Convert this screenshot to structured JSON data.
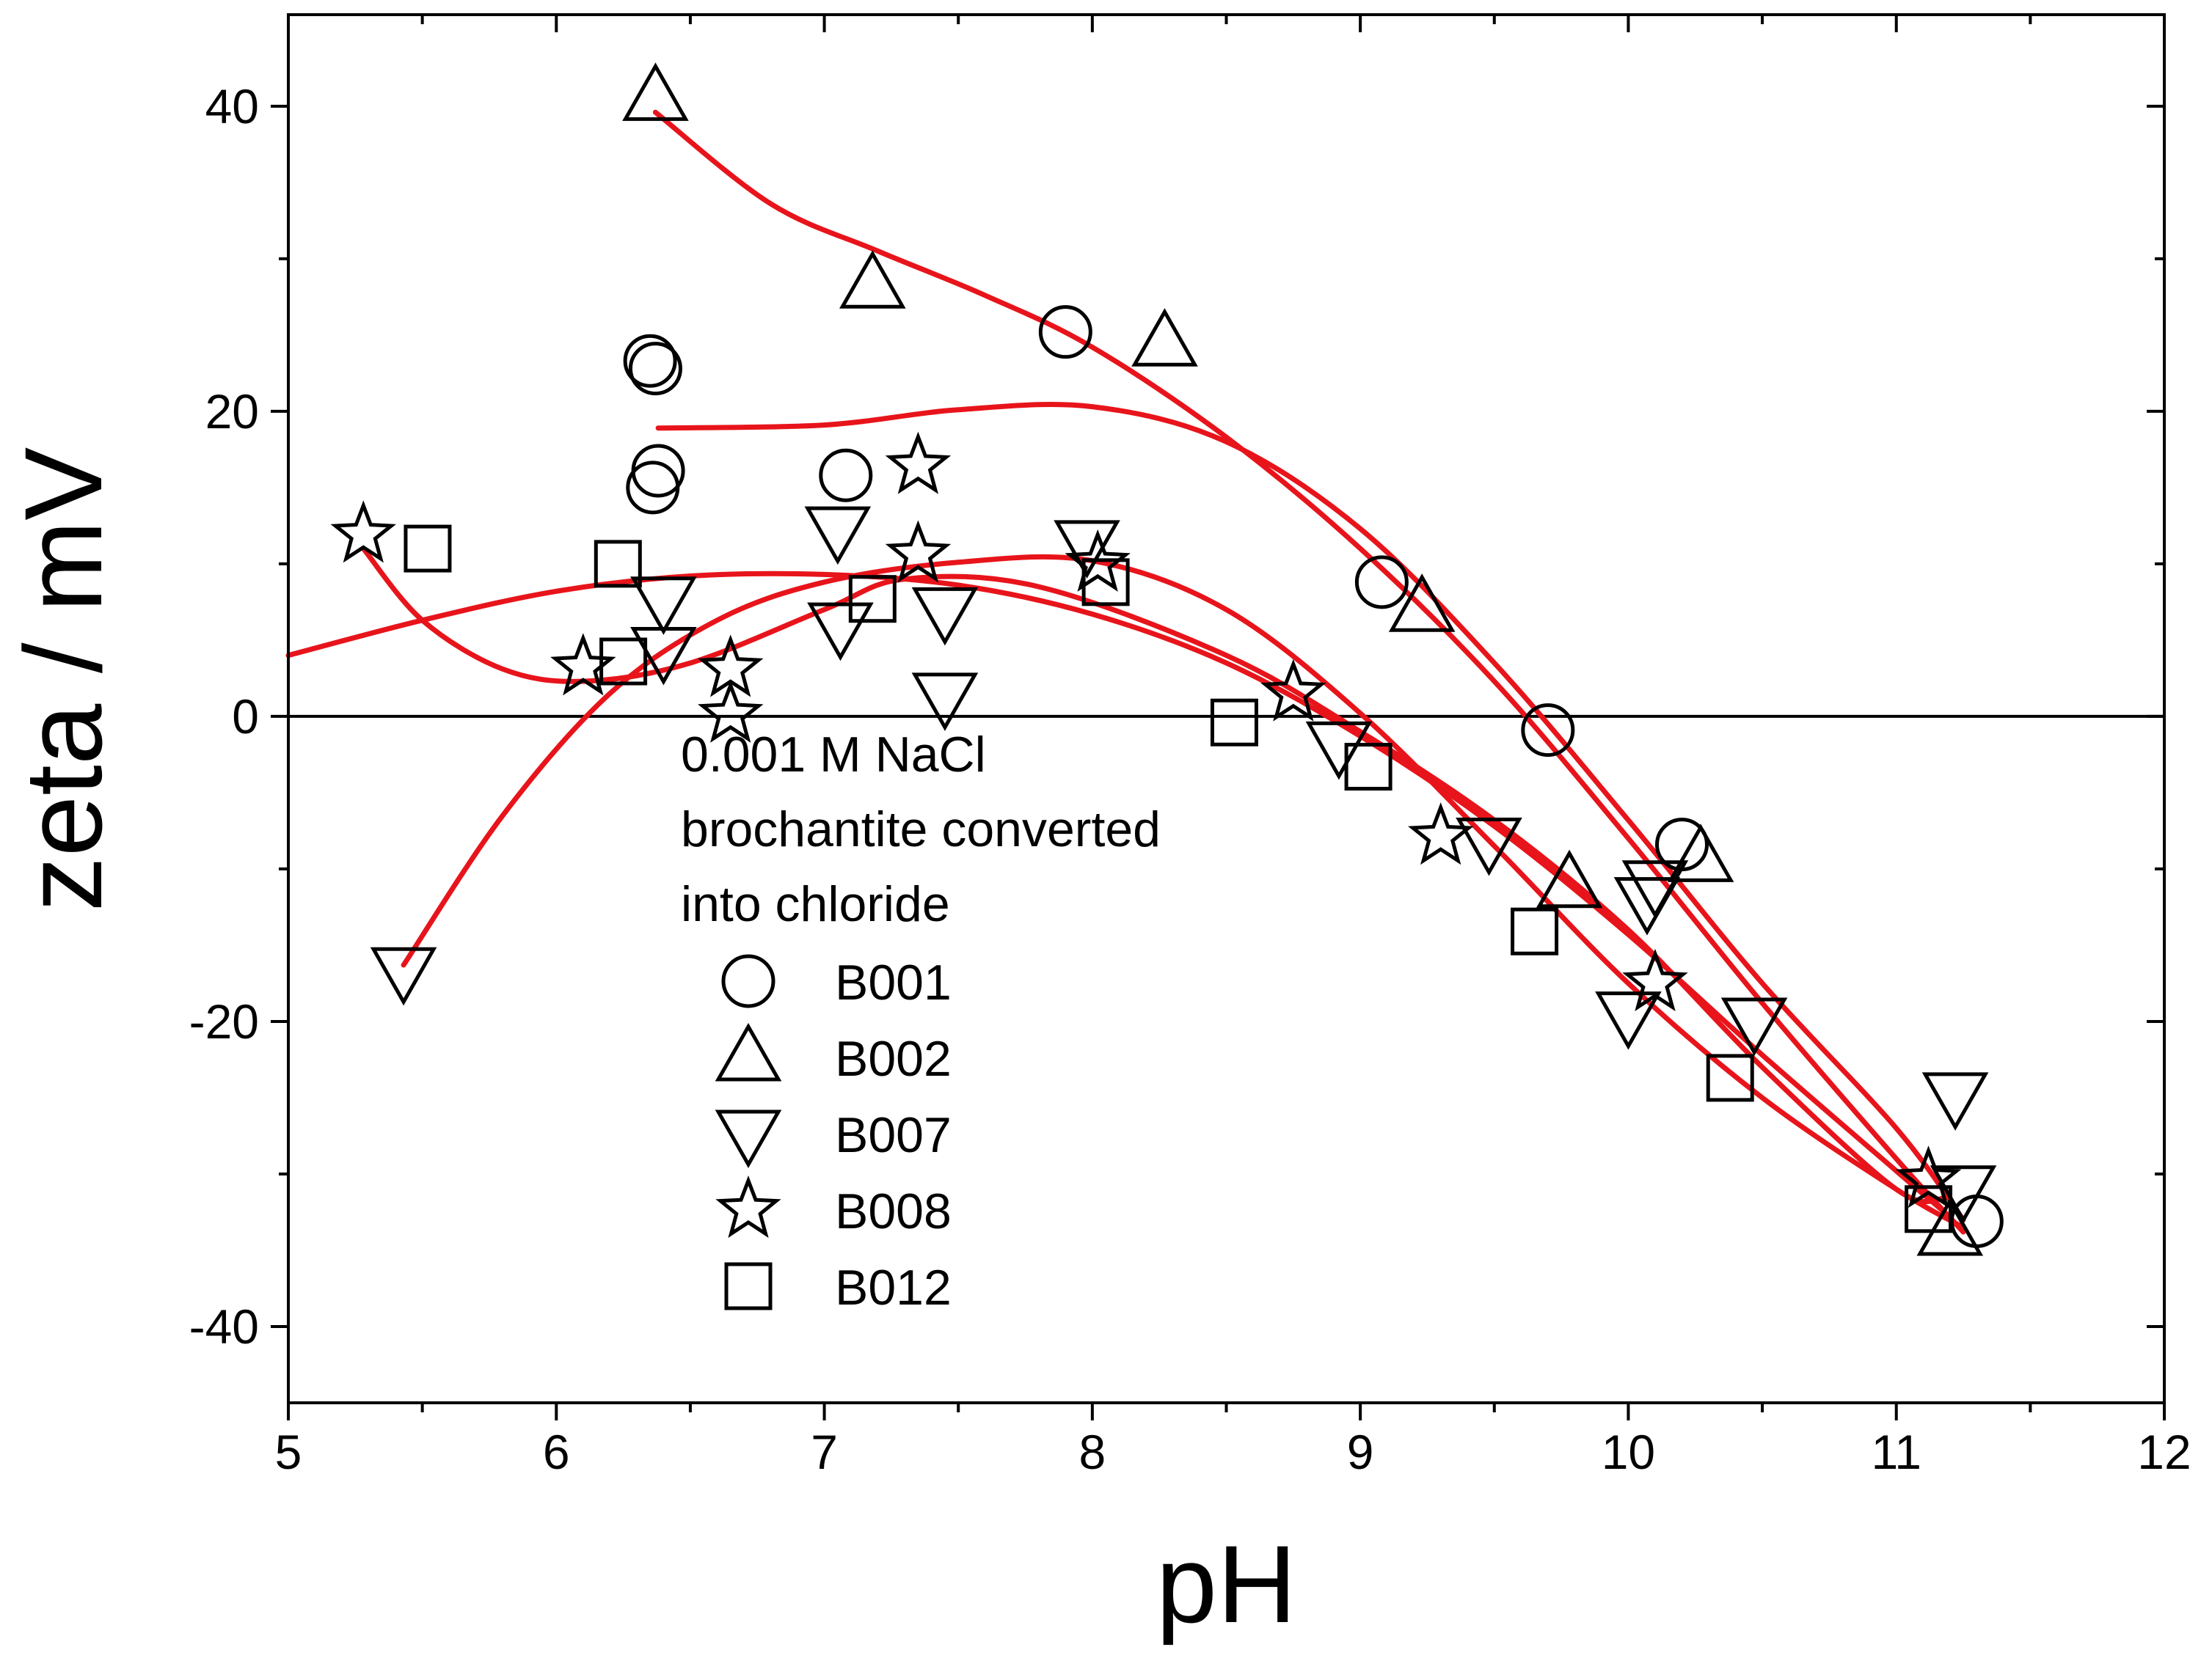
{
  "chart_data": {
    "type": "scatter",
    "title": "",
    "xlabel": "pH",
    "ylabel": "zeta / mV",
    "xlim": [
      5,
      12
    ],
    "ylim": [
      -45,
      46
    ],
    "x_ticks": [
      5,
      6,
      7,
      8,
      9,
      10,
      11,
      12
    ],
    "y_ticks": [
      -40,
      -20,
      0,
      20,
      40
    ],
    "x_minor_ticks": [
      5.5,
      6.5,
      7.5,
      8.5,
      9.5,
      10.5,
      11.5
    ],
    "y_minor_ticks": [
      -30,
      -10,
      10,
      30
    ],
    "reference_line_y": 0,
    "legend_position": "center",
    "legend_title": [
      "0.001 M NaCl",
      "brochantite converted",
      "into chloride"
    ],
    "colors": {
      "markers": "#000000",
      "fit_curves": "#e8141b",
      "axes": "#000000",
      "background": "#ffffff"
    },
    "series": [
      {
        "name": "B001",
        "marker": "circle",
        "points": [
          [
            6.35,
            23.3
          ],
          [
            6.37,
            22.8
          ],
          [
            6.38,
            16.1
          ],
          [
            6.36,
            15.0
          ],
          [
            7.08,
            15.8
          ],
          [
            7.9,
            25.2
          ],
          [
            9.08,
            8.8
          ],
          [
            9.7,
            -0.9
          ],
          [
            10.2,
            -8.4
          ],
          [
            11.3,
            -33.1
          ]
        ]
      },
      {
        "name": "B002",
        "marker": "triangle-up",
        "points": [
          [
            6.37,
            40.6
          ],
          [
            7.18,
            28.3
          ],
          [
            8.27,
            24.5
          ],
          [
            9.23,
            7.1
          ],
          [
            9.78,
            -11.0
          ],
          [
            10.27,
            -9.3
          ],
          [
            11.2,
            -33.8
          ]
        ]
      },
      {
        "name": "B007",
        "marker": "triangle-down",
        "points": [
          [
            5.43,
            -16.7
          ],
          [
            6.4,
            7.6
          ],
          [
            6.4,
            4.3
          ],
          [
            7.05,
            12.2
          ],
          [
            7.06,
            5.9
          ],
          [
            7.45,
            6.9
          ],
          [
            7.45,
            1.3
          ],
          [
            7.98,
            11.3
          ],
          [
            8.92,
            -1.9
          ],
          [
            9.48,
            -8.2
          ],
          [
            10.0,
            -19.6
          ],
          [
            10.07,
            -12.1
          ],
          [
            10.1,
            -11.0
          ],
          [
            10.47,
            -20.0
          ],
          [
            11.22,
            -24.9
          ],
          [
            11.25,
            -31.0
          ]
        ]
      },
      {
        "name": "B008",
        "marker": "star",
        "points": [
          [
            5.28,
            11.9
          ],
          [
            6.1,
            3.2
          ],
          [
            6.65,
            3.1
          ],
          [
            6.65,
            0.1
          ],
          [
            7.35,
            16.4
          ],
          [
            7.35,
            10.6
          ],
          [
            8.02,
            10.0
          ],
          [
            8.75,
            1.5
          ],
          [
            9.3,
            -7.9
          ],
          [
            10.1,
            -17.5
          ],
          [
            11.12,
            -30.4
          ]
        ]
      },
      {
        "name": "B012",
        "marker": "square",
        "points": [
          [
            5.52,
            11.0
          ],
          [
            6.23,
            10.0
          ],
          [
            6.25,
            3.6
          ],
          [
            7.18,
            7.7
          ],
          [
            8.05,
            8.8
          ],
          [
            8.53,
            -0.4
          ],
          [
            9.03,
            -3.3
          ],
          [
            9.65,
            -14.1
          ],
          [
            10.38,
            -23.7
          ],
          [
            11.12,
            -32.3
          ]
        ]
      }
    ],
    "fit_curves": [
      {
        "name": "B001 fit",
        "points": [
          [
            6.38,
            18.9
          ],
          [
            7.0,
            19.1
          ],
          [
            7.5,
            20.1
          ],
          [
            8.0,
            20.3
          ],
          [
            8.5,
            18.0
          ],
          [
            9.0,
            12.3
          ],
          [
            9.5,
            3.5
          ],
          [
            10.0,
            -6.8
          ],
          [
            10.5,
            -17.5
          ],
          [
            11.0,
            -27.0
          ],
          [
            11.25,
            -33.0
          ]
        ]
      },
      {
        "name": "B002 fit",
        "points": [
          [
            6.37,
            39.6
          ],
          [
            6.8,
            33.6
          ],
          [
            7.2,
            30.5
          ],
          [
            7.6,
            27.6
          ],
          [
            8.0,
            24.2
          ],
          [
            8.5,
            18.3
          ],
          [
            9.0,
            11.0
          ],
          [
            9.5,
            2.3
          ],
          [
            10.0,
            -8.0
          ],
          [
            10.5,
            -18.8
          ],
          [
            11.0,
            -29.0
          ],
          [
            11.25,
            -33.8
          ]
        ]
      },
      {
        "name": "B007 fit",
        "points": [
          [
            5.43,
            -16.3
          ],
          [
            5.8,
            -6.5
          ],
          [
            6.2,
            1.5
          ],
          [
            6.6,
            6.3
          ],
          [
            7.0,
            8.8
          ],
          [
            7.5,
            10.1
          ],
          [
            8.0,
            10.2
          ],
          [
            8.5,
            7.0
          ],
          [
            9.0,
            0.2
          ],
          [
            9.5,
            -8.5
          ],
          [
            10.0,
            -17.5
          ],
          [
            10.5,
            -25.0
          ],
          [
            11.0,
            -31.0
          ],
          [
            11.25,
            -33.5
          ]
        ]
      },
      {
        "name": "B008 fit",
        "points": [
          [
            5.28,
            11.0
          ],
          [
            5.5,
            6.3
          ],
          [
            5.8,
            3.1
          ],
          [
            6.1,
            2.3
          ],
          [
            6.5,
            3.5
          ],
          [
            7.0,
            7.0
          ],
          [
            7.3,
            9.0
          ],
          [
            7.8,
            8.5
          ],
          [
            8.5,
            4.0
          ],
          [
            9.0,
            -1.0
          ],
          [
            9.5,
            -6.8
          ],
          [
            10.0,
            -14.0
          ],
          [
            10.5,
            -23.0
          ],
          [
            11.0,
            -31.0
          ],
          [
            11.18,
            -31.6
          ]
        ]
      },
      {
        "name": "B012 fit",
        "points": [
          [
            5.0,
            4.0
          ],
          [
            5.5,
            6.3
          ],
          [
            6.0,
            8.2
          ],
          [
            6.5,
            9.2
          ],
          [
            7.0,
            9.3
          ],
          [
            7.5,
            8.6
          ],
          [
            8.0,
            6.7
          ],
          [
            8.5,
            3.5
          ],
          [
            9.0,
            -1.3
          ],
          [
            9.5,
            -7.2
          ],
          [
            10.0,
            -14.3
          ],
          [
            10.5,
            -22.2
          ],
          [
            11.0,
            -29.8
          ],
          [
            11.2,
            -32.8
          ]
        ]
      }
    ]
  }
}
